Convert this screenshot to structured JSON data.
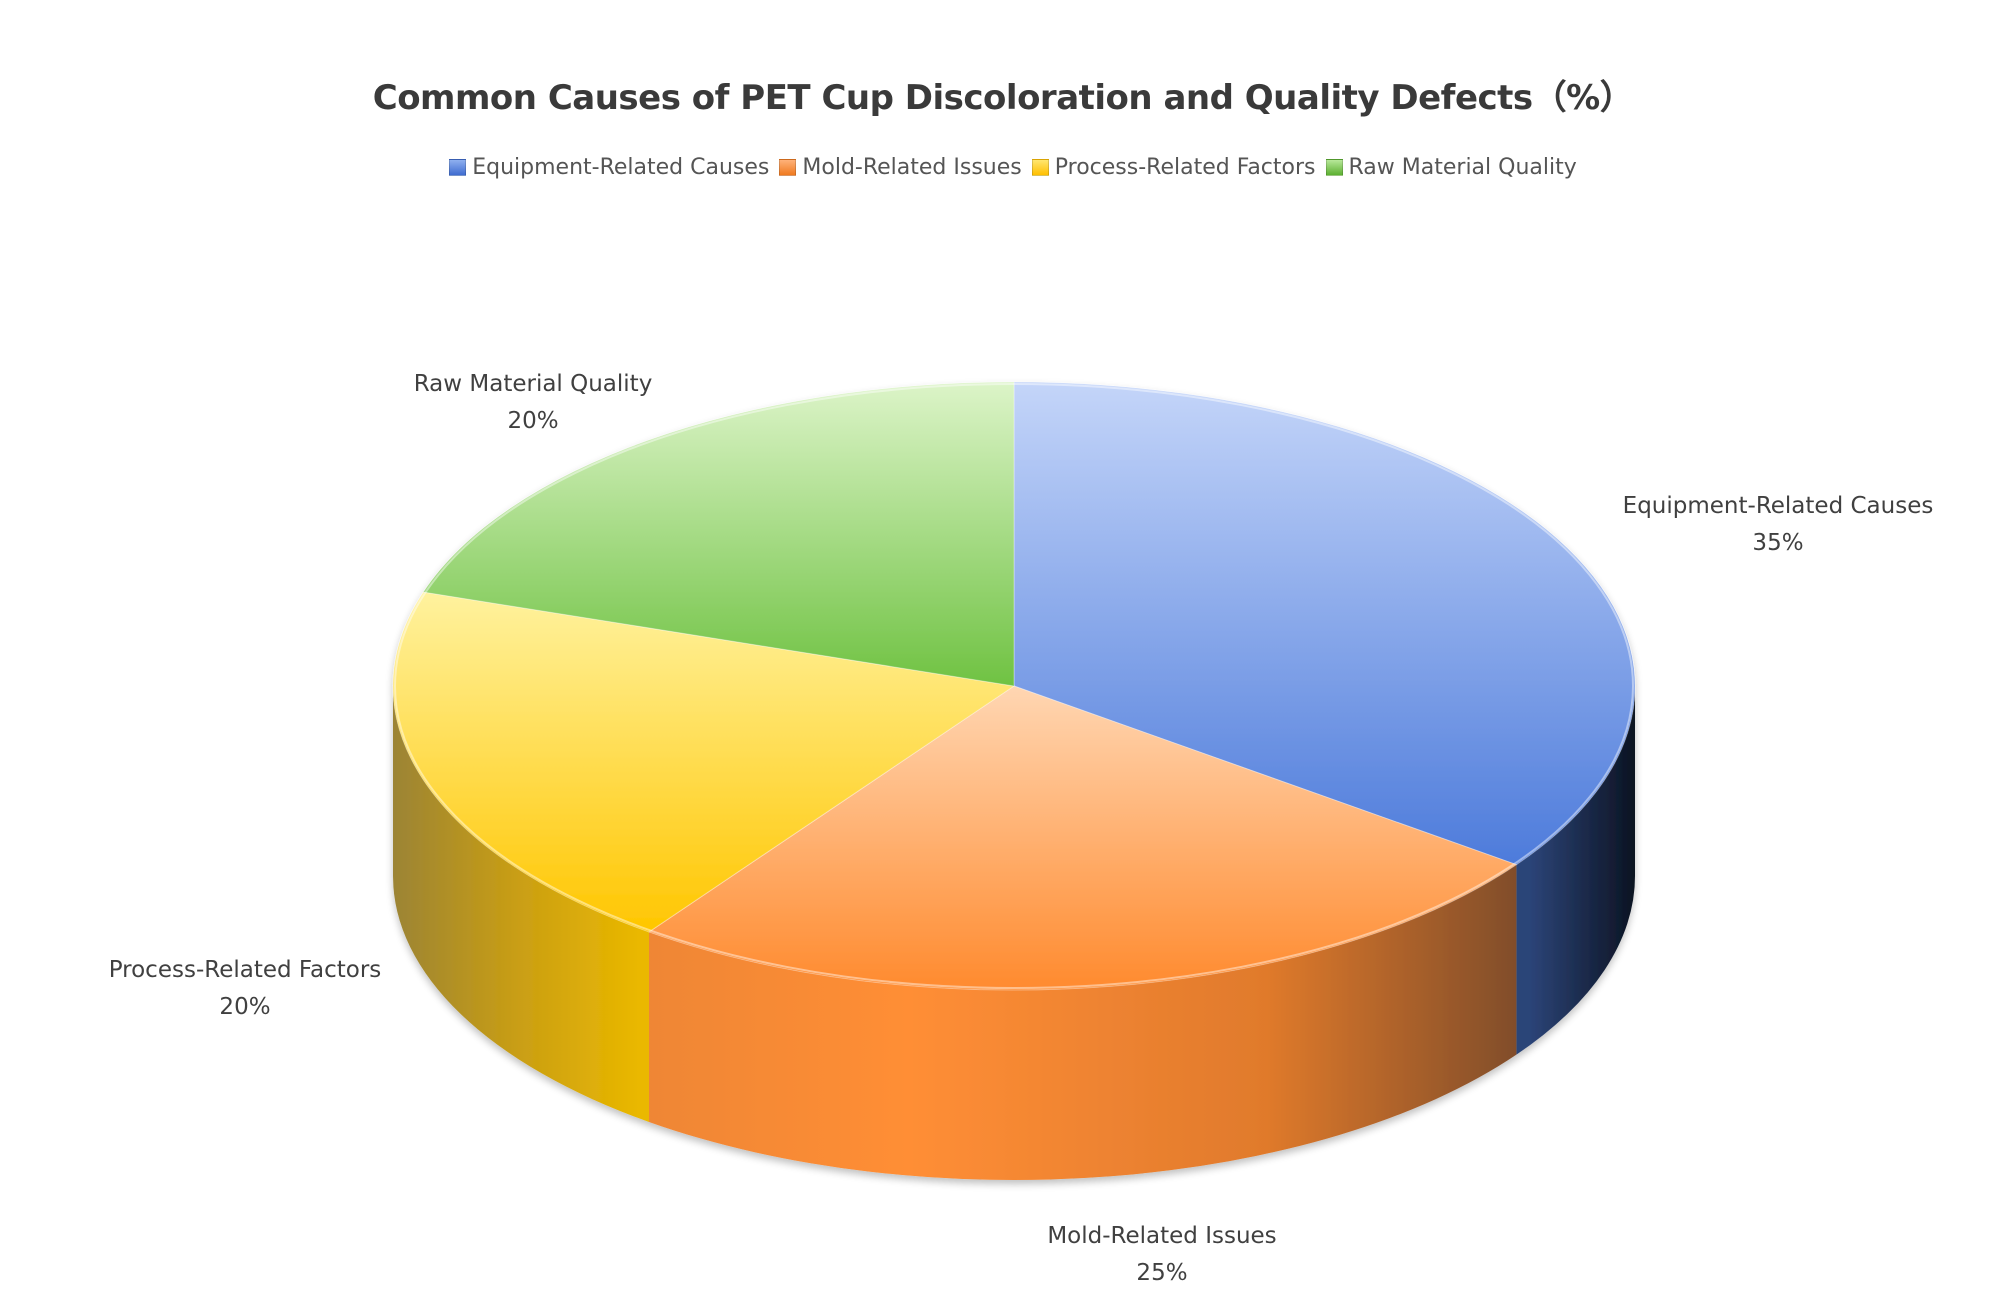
{
  "chart_data": {
    "type": "pie",
    "variant": "3d-pie",
    "title": "Common Causes of PET Cup Discoloration and Quality Defects（%）",
    "categories": [
      "Equipment-Related Causes",
      "Mold-Related Issues",
      "Process-Related Factors",
      "Raw Material Quality"
    ],
    "values": [
      35,
      25,
      20,
      20
    ],
    "unit": "%",
    "legend_position": "top",
    "data_labels": [
      {
        "name": "Equipment-Related Causes",
        "value": "35%"
      },
      {
        "name": "Mold-Related Issues",
        "value": "25%"
      },
      {
        "name": "Process-Related Factors",
        "value": "20%"
      },
      {
        "name": "Raw Material Quality",
        "value": "20%"
      }
    ]
  },
  "title": "Common Causes of PET Cup Discoloration and Quality Defects（%）",
  "legend": [
    {
      "label": "Equipment-Related Causes",
      "color": "#4472C4"
    },
    {
      "label": "Mold-Related Issues",
      "color": "#ED7D31"
    },
    {
      "label": "Process-Related Factors",
      "color": "#FFC000"
    },
    {
      "label": "Raw Material Quality",
      "color": "#70AD47"
    }
  ],
  "labels": [
    {
      "name": "Equipment-Related Causes",
      "pct": "35%"
    },
    {
      "name": "Mold-Related Issues",
      "pct": "25%"
    },
    {
      "name": "Process-Related Factors",
      "pct": "20%"
    },
    {
      "name": "Raw Material Quality",
      "pct": "20%"
    }
  ],
  "colors": {
    "equipment": {
      "top_light": "#c4d5f9",
      "top_dark": "#4d7bdb",
      "side_light": "#2a3f72",
      "side_dark": "#0b1322"
    },
    "mold": {
      "top_light": "#ffcfa6",
      "top_dark": "#ff8a2e",
      "side_light": "#f08a3a",
      "side_dark": "#7a4a2a"
    },
    "process": {
      "top_light": "#fff19a",
      "top_dark": "#ffc800",
      "side_light": "#e8b800",
      "side_dark": "#9a7a2a"
    },
    "raw": {
      "top_light": "#daf3c4",
      "top_dark": "#72c446"
    }
  }
}
